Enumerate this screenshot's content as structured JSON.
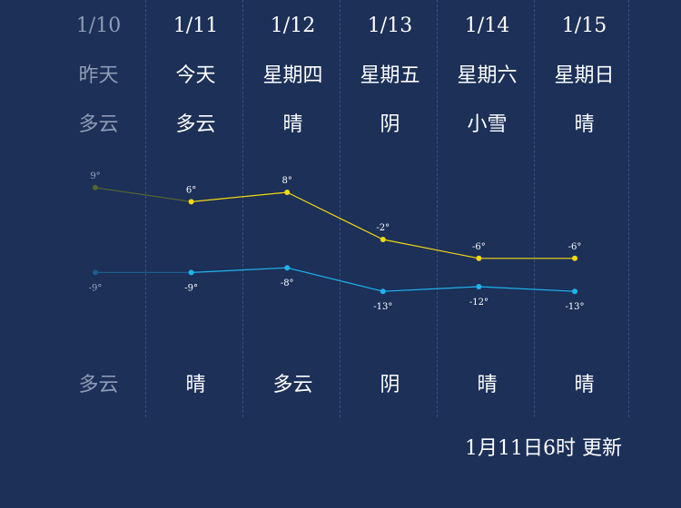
{
  "days": [
    {
      "date": "1/10",
      "label": "昨天",
      "day_weather": "多云",
      "night_weather": "多云",
      "high": "9°",
      "low": "-9°",
      "past": true
    },
    {
      "date": "1/11",
      "label": "今天",
      "day_weather": "多云",
      "night_weather": "晴",
      "high": "6°",
      "low": "-9°",
      "past": false
    },
    {
      "date": "1/12",
      "label": "星期四",
      "day_weather": "晴",
      "night_weather": "多云",
      "high": "8°",
      "low": "-8°",
      "past": false
    },
    {
      "date": "1/13",
      "label": "星期五",
      "day_weather": "阴",
      "night_weather": "阴",
      "high": "-2°",
      "low": "-13°",
      "past": false
    },
    {
      "date": "1/14",
      "label": "星期六",
      "day_weather": "小雪",
      "night_weather": "晴",
      "high": "-6°",
      "low": "-12°",
      "past": false
    },
    {
      "date": "1/15",
      "label": "星期日",
      "day_weather": "晴",
      "night_weather": "晴",
      "high": "-6°",
      "low": "-13°",
      "past": false
    }
  ],
  "chart_data": {
    "type": "line",
    "categories": [
      "1/10",
      "1/11",
      "1/12",
      "1/13",
      "1/14",
      "1/15"
    ],
    "series": [
      {
        "values": [
          9,
          6,
          8,
          -2,
          -6,
          -6
        ],
        "color": "#f5d80f"
      },
      {
        "values": [
          -9,
          -9,
          -8,
          -13,
          -12,
          -13
        ],
        "color": "#1eb4f0"
      }
    ],
    "past_color": "#58662e",
    "past_low_color": "#1a5c8c"
  },
  "footer": {
    "updated": "1月11日6时 更新"
  }
}
